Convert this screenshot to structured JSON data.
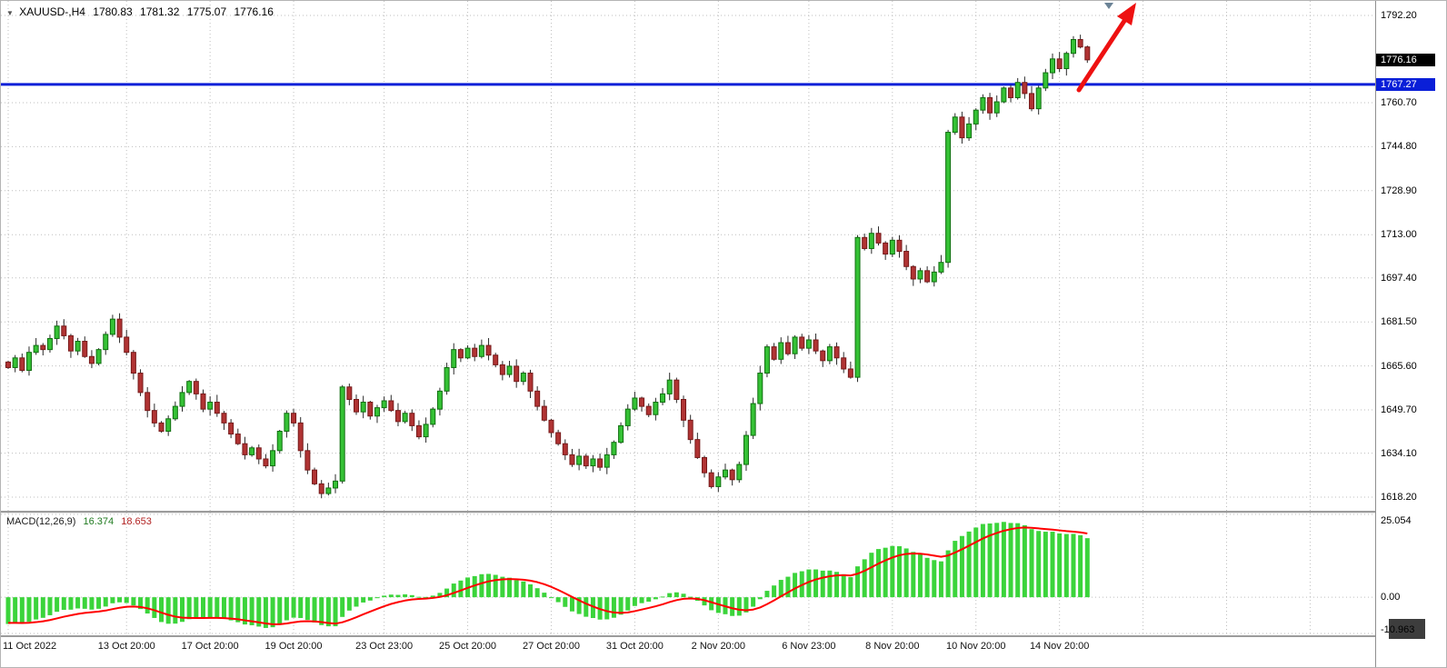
{
  "header": {
    "dropdown_icon": "▼",
    "symbol": "XAUUSD-,H4",
    "open": "1780.83",
    "high": "1781.32",
    "low": "1775.07",
    "close": "1776.16"
  },
  "price_axis": {
    "labels": [
      "1792.20",
      "1760.70",
      "1744.80",
      "1728.90",
      "1713.00",
      "1697.40",
      "1681.50",
      "1665.60",
      "1649.70",
      "1634.10",
      "1618.20"
    ],
    "current_badge": "1776.16",
    "level_badge": "1767.27"
  },
  "time_axis": {
    "labels": [
      "11 Oct 2022",
      "13 Oct 20:00",
      "17 Oct 20:00",
      "19 Oct 20:00",
      "23 Oct 23:00",
      "25 Oct 20:00",
      "27 Oct 20:00",
      "31 Oct 20:00",
      "2 Nov 20:00",
      "6 Nov 23:00",
      "8 Nov 20:00",
      "10 Nov 20:00",
      "14 Nov 20:00"
    ],
    "label_candle_indices": [
      0,
      17,
      29,
      41,
      54,
      66,
      78,
      90,
      102,
      115,
      127,
      139,
      151
    ]
  },
  "macd_panel": {
    "title": "MACD(12,26,9)",
    "value_main": "16.374",
    "value_signal": "18.653",
    "axis_labels": [
      "25.054",
      "0.00",
      "-10.963"
    ]
  },
  "colors": {
    "up_fill": "#35c135",
    "up_stroke": "#0f6e0f",
    "down_fill": "#b03333",
    "down_stroke": "#761a1a",
    "wick": "#2a2a2a",
    "grid": "#bdbdbd",
    "level_line": "#0a1fd8",
    "current_badge_bg": "#000000",
    "level_badge_bg": "#0a1fd8",
    "macd_hist": "#3bd43b",
    "macd_signal": "#ff0000",
    "arrow": "#ee1111",
    "axis_text": "#000000"
  },
  "chart_data": {
    "type": "candlestick",
    "symbol": "XAUUSD-",
    "timeframe": "H4",
    "title": "XAUUSD- H4 with MACD(12,26,9)",
    "ylim": [
      1618.2,
      1792.2
    ],
    "price_gridlines": [
      1792.2,
      1760.7,
      1744.8,
      1728.9,
      1713.0,
      1697.4,
      1681.5,
      1665.6,
      1649.7,
      1634.1,
      1618.2
    ],
    "horizontal_line": 1767.27,
    "first_open": 1667.0,
    "closes": [
      1665.0,
      1668.5,
      1664.0,
      1670.5,
      1673.0,
      1671.5,
      1675.5,
      1680.0,
      1676.5,
      1671.0,
      1674.5,
      1669.0,
      1666.5,
      1671.5,
      1677.0,
      1682.5,
      1676.0,
      1670.5,
      1663.0,
      1656.0,
      1649.5,
      1645.0,
      1642.0,
      1646.5,
      1651.0,
      1656.0,
      1660.0,
      1655.5,
      1650.0,
      1652.5,
      1648.5,
      1645.0,
      1641.0,
      1637.5,
      1633.5,
      1636.0,
      1632.0,
      1629.5,
      1635.0,
      1642.0,
      1648.5,
      1645.0,
      1635.0,
      1628.0,
      1623.0,
      1619.5,
      1621.5,
      1624.0,
      1658.0,
      1653.5,
      1649.0,
      1652.5,
      1647.5,
      1650.5,
      1653.0,
      1649.5,
      1645.5,
      1648.5,
      1644.0,
      1640.0,
      1644.5,
      1650.0,
      1656.5,
      1665.0,
      1671.5,
      1668.5,
      1672.0,
      1669.0,
      1673.0,
      1669.5,
      1666.0,
      1662.5,
      1665.5,
      1660.0,
      1663.0,
      1656.5,
      1651.0,
      1646.0,
      1641.5,
      1637.5,
      1633.5,
      1630.0,
      1633.0,
      1629.5,
      1632.0,
      1629.0,
      1633.5,
      1638.0,
      1644.0,
      1650.0,
      1654.0,
      1651.0,
      1648.0,
      1652.5,
      1655.5,
      1660.5,
      1653.5,
      1646.0,
      1639.0,
      1632.5,
      1627.0,
      1622.0,
      1625.5,
      1628.0,
      1624.5,
      1630.0,
      1640.5,
      1652.0,
      1663.0,
      1672.5,
      1668.0,
      1674.0,
      1670.0,
      1676.0,
      1672.0,
      1675.0,
      1671.0,
      1667.5,
      1672.5,
      1668.5,
      1664.5,
      1661.5,
      1712.0,
      1708.0,
      1713.5,
      1710.0,
      1706.0,
      1711.0,
      1707.0,
      1701.5,
      1697.0,
      1700.0,
      1696.0,
      1699.5,
      1703.0,
      1750.0,
      1755.5,
      1748.0,
      1753.0,
      1758.0,
      1762.5,
      1757.0,
      1761.0,
      1766.0,
      1762.5,
      1768.0,
      1764.0,
      1758.5,
      1766.0,
      1771.5,
      1776.5,
      1773.0,
      1778.5,
      1783.5,
      1780.8,
      1776.16
    ],
    "last_ohlc": [
      1780.83,
      1781.32,
      1775.07,
      1776.16
    ],
    "indicator": {
      "name": "MACD",
      "fast": 12,
      "slow": 26,
      "signal": 9,
      "last_macd": 16.374,
      "last_signal": 18.653,
      "axis_max": 25.054,
      "axis_min": -10.963,
      "warmup_start": 1721,
      "warmup_step": -1.2,
      "warmup_count": 45
    },
    "annotations": [
      {
        "type": "arrow",
        "direction": "up-right",
        "color": "#ee1111"
      },
      {
        "type": "horizontal-line",
        "value": 1767.27,
        "color": "#0a1fd8"
      }
    ]
  }
}
